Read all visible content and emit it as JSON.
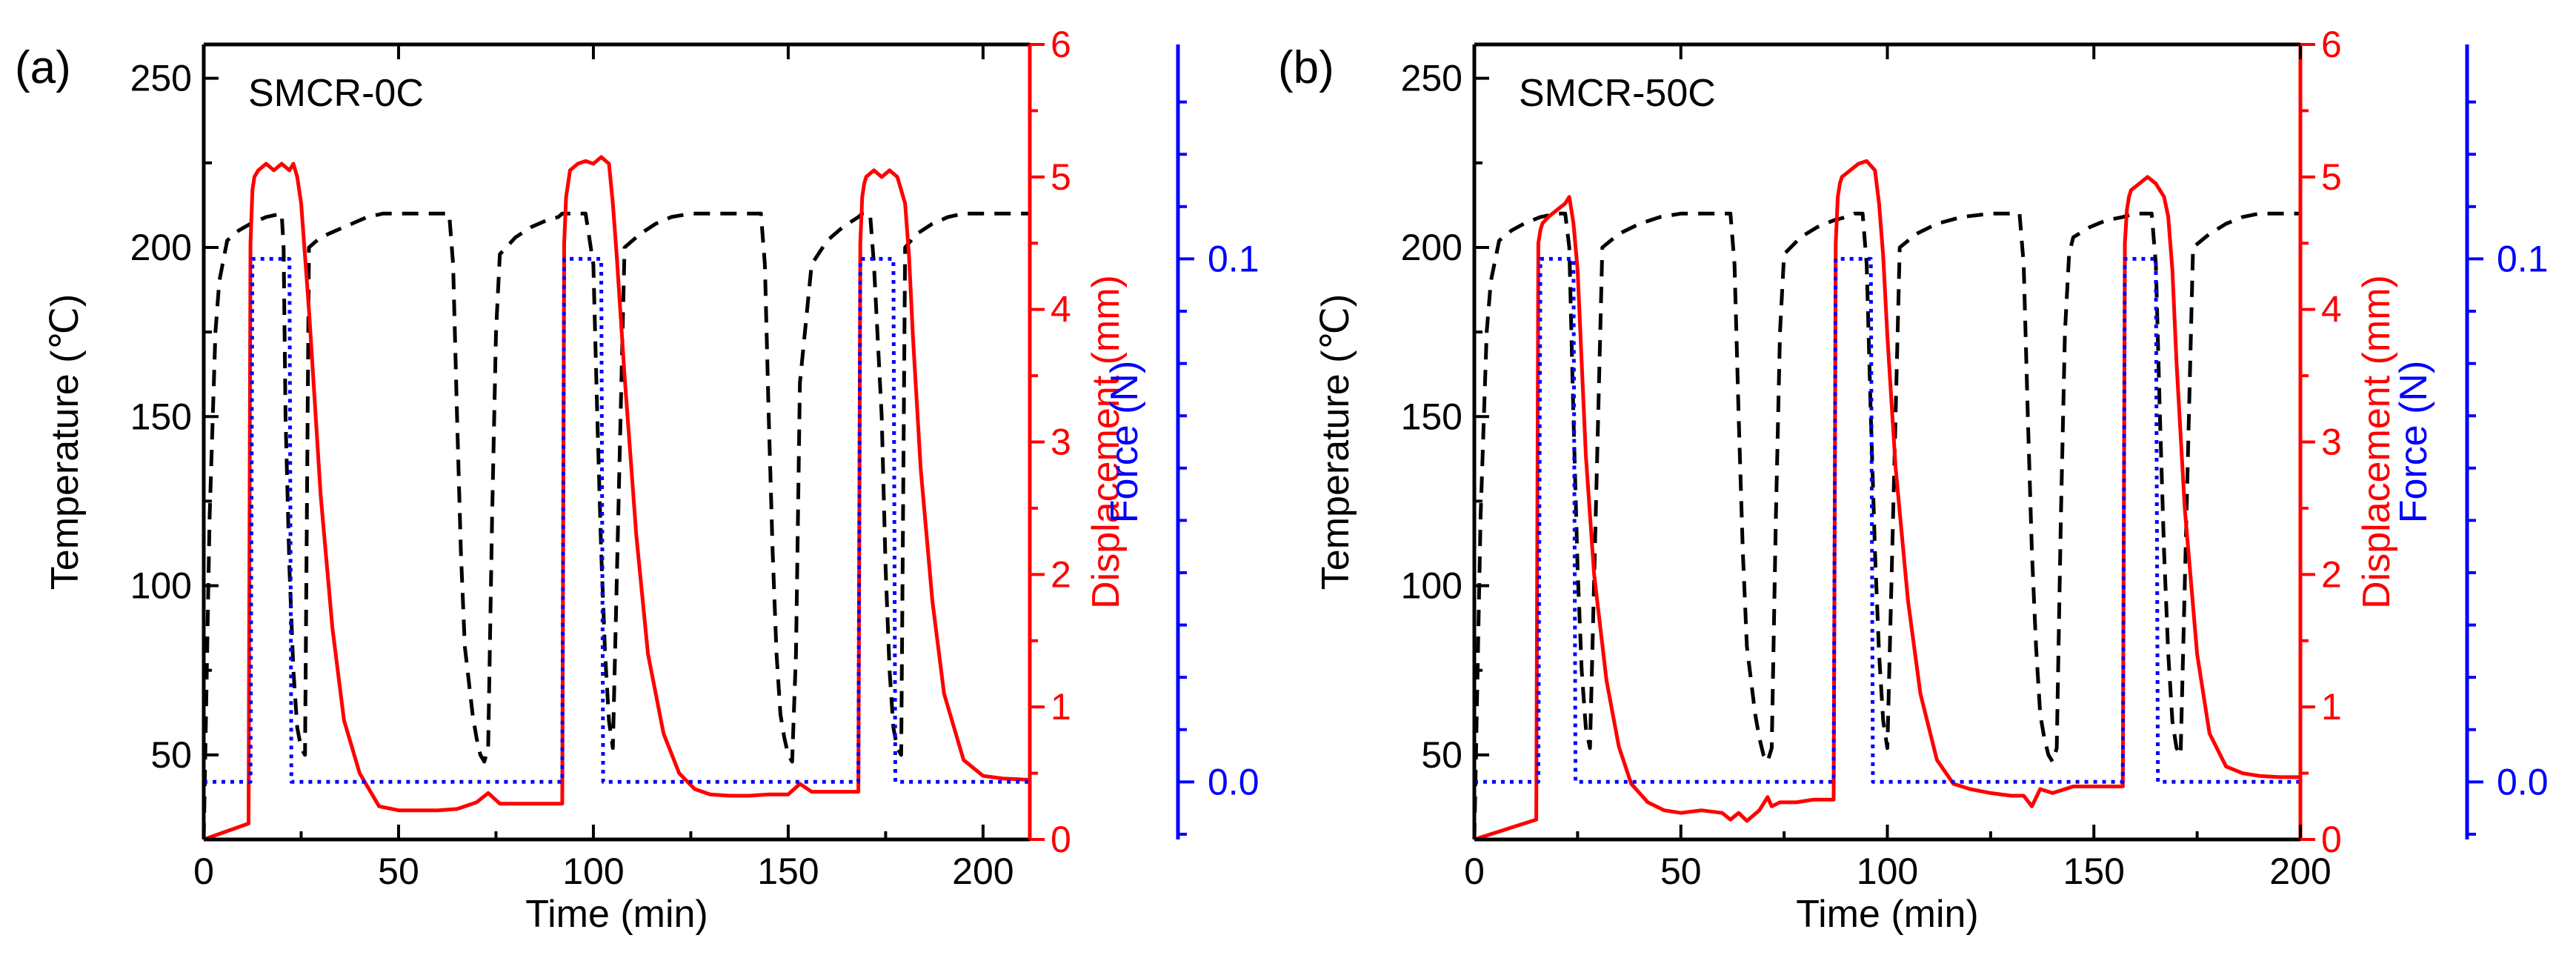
{
  "figure_label": "Figure with two panels (a) and (b)",
  "chart_data": [
    {
      "type": "line",
      "panel_label": "(a)",
      "title": "SMCR-0C",
      "xlabel": "Time (min)",
      "ylabel_left": "Temperature (℃)",
      "ylabel_right": "Displacement (mm)",
      "ylabel_force": "Force (N)",
      "xlim": [
        0,
        212
      ],
      "ylim_left": [
        25,
        260
      ],
      "ylim_right": [
        0,
        6
      ],
      "ylim_force": [
        -0.011,
        0.141
      ],
      "x_ticks": [
        0,
        50,
        100,
        150,
        200
      ],
      "x_tick_labels": [
        "0",
        "50",
        "100",
        "150",
        "200"
      ],
      "y_left_ticks": [
        50,
        100,
        150,
        200,
        250
      ],
      "y_left_tick_labels": [
        "50",
        "100",
        "150",
        "200",
        "250"
      ],
      "y_right_ticks": [
        0,
        1,
        2,
        3,
        4,
        5,
        6
      ],
      "y_right_tick_labels": [
        "0",
        "1",
        "2",
        "3",
        "4",
        "5",
        "6"
      ],
      "y_force_ticks": [
        0.0,
        0.1
      ],
      "y_force_tick_labels": [
        "0.0",
        "0.1"
      ],
      "grid": false,
      "series": [
        {
          "name": "Temperature",
          "axis": "left",
          "color": "#000000",
          "style": "dashed",
          "x": [
            0,
            1.5,
            3,
            4,
            6,
            9,
            12,
            16,
            20,
            20.5,
            21,
            22,
            23,
            24,
            25,
            26,
            27,
            30,
            34,
            38,
            42,
            46,
            50,
            55,
            60,
            63,
            64,
            65,
            66,
            67,
            69,
            70,
            71,
            72,
            73,
            74,
            75,
            76,
            80,
            84,
            88,
            91,
            92,
            93,
            94,
            96,
            98,
            100,
            101,
            102,
            103,
            104,
            105,
            108,
            112,
            116,
            120,
            125,
            130,
            140,
            143,
            144,
            145,
            146,
            147,
            148,
            149,
            150,
            151,
            152,
            153,
            156,
            160,
            164,
            168,
            169,
            170,
            171,
            172,
            174,
            175,
            176,
            177,
            178,
            179,
            180,
            183,
            187,
            191,
            195,
            200,
            205,
            212
          ],
          "y": [
            25,
            120,
            175,
            190,
            202,
            205,
            207,
            209,
            210,
            200,
            150,
            105,
            75,
            58,
            52,
            50,
            200,
            203,
            205,
            207,
            209,
            210,
            210,
            210,
            210,
            210,
            195,
            150,
            110,
            82,
            62,
            55,
            50,
            48,
            52,
            120,
            175,
            198,
            203,
            206,
            208,
            209,
            210,
            210,
            210,
            210,
            210,
            195,
            150,
            110,
            80,
            60,
            52,
            200,
            204,
            207,
            209,
            210,
            210,
            210,
            210,
            195,
            150,
            110,
            80,
            62,
            55,
            50,
            48,
            80,
            160,
            195,
            202,
            206,
            209,
            210,
            210,
            210,
            195,
            150,
            105,
            75,
            58,
            52,
            50,
            200,
            204,
            207,
            209,
            210,
            210,
            210,
            210
          ]
        },
        {
          "name": "Displacement",
          "axis": "right",
          "color": "#ff0000",
          "style": "solid",
          "x": [
            0,
            11.5,
            12,
            12.5,
            13,
            14,
            16,
            18,
            20,
            22,
            23,
            24,
            25,
            27,
            30,
            33,
            36,
            40,
            45,
            50,
            55,
            60,
            65,
            70,
            73,
            76,
            78,
            85,
            92,
            92.5,
            93,
            93.5,
            94,
            96,
            98,
            100,
            102,
            104,
            105,
            106,
            108,
            111,
            114,
            118,
            122,
            126,
            130,
            135,
            140,
            145,
            150,
            153,
            156,
            160,
            168,
            168.5,
            169,
            169.5,
            170,
            172,
            174,
            176,
            178,
            180,
            181,
            182,
            184,
            187,
            190,
            195,
            200,
            205,
            212
          ],
          "y": [
            0,
            0.12,
            4.5,
            4.9,
            5.0,
            5.05,
            5.1,
            5.05,
            5.1,
            5.05,
            5.1,
            5.0,
            4.8,
            4.0,
            2.6,
            1.6,
            0.9,
            0.5,
            0.25,
            0.22,
            0.22,
            0.22,
            0.23,
            0.28,
            0.35,
            0.27,
            0.27,
            0.27,
            0.27,
            4.5,
            4.85,
            4.95,
            5.05,
            5.1,
            5.12,
            5.1,
            5.15,
            5.1,
            4.8,
            4.4,
            3.5,
            2.3,
            1.4,
            0.8,
            0.5,
            0.38,
            0.34,
            0.33,
            0.33,
            0.34,
            0.34,
            0.42,
            0.36,
            0.36,
            0.36,
            4.5,
            4.85,
            4.95,
            5.0,
            5.05,
            5.0,
            5.05,
            5.0,
            4.8,
            4.4,
            3.8,
            2.8,
            1.8,
            1.1,
            0.6,
            0.48,
            0.46,
            0.45
          ]
        },
        {
          "name": "Force",
          "axis": "force",
          "color": "#0000ff",
          "style": "dotted",
          "x": [
            0,
            12,
            12.5,
            22,
            22.5,
            92,
            92.5,
            102,
            102.5,
            168,
            168.5,
            177,
            177.5,
            212
          ],
          "y": [
            0,
            0,
            0.1,
            0.1,
            0,
            0,
            0.1,
            0.1,
            0,
            0,
            0.1,
            0.1,
            0,
            0
          ]
        }
      ]
    },
    {
      "type": "line",
      "panel_label": "(b)",
      "title": "SMCR-50C",
      "xlabel": "Time (min)",
      "ylabel_left": "Temperature (℃)",
      "ylabel_right": "Displacement (mm)",
      "ylabel_force": "Force (N)",
      "xlim": [
        0,
        200
      ],
      "ylim_left": [
        25,
        260
      ],
      "ylim_right": [
        0,
        6
      ],
      "ylim_force": [
        -0.011,
        0.141
      ],
      "x_ticks": [
        0,
        50,
        100,
        150,
        200
      ],
      "x_tick_labels": [
        "0",
        "50",
        "100",
        "150",
        "200"
      ],
      "y_left_ticks": [
        50,
        100,
        150,
        200,
        250
      ],
      "y_left_tick_labels": [
        "50",
        "100",
        "150",
        "200",
        "250"
      ],
      "y_right_ticks": [
        0,
        1,
        2,
        3,
        4,
        5,
        6
      ],
      "y_right_tick_labels": [
        "0",
        "1",
        "2",
        "3",
        "4",
        "5",
        "6"
      ],
      "y_force_ticks": [
        0.0,
        0.1
      ],
      "y_force_tick_labels": [
        "0.0",
        "0.1"
      ],
      "grid": false,
      "series": [
        {
          "name": "Temperature",
          "axis": "left",
          "color": "#000000",
          "style": "dashed",
          "x": [
            0,
            1.5,
            3,
            4,
            6,
            9,
            12,
            16,
            20,
            22,
            23,
            24,
            25,
            26,
            27,
            28,
            31,
            35,
            40,
            45,
            50,
            55,
            60,
            62,
            63,
            64,
            65,
            66,
            68,
            69,
            70,
            71,
            72,
            73,
            74,
            75,
            79,
            83,
            87,
            90,
            92,
            94,
            95,
            96,
            97,
            98,
            99,
            100,
            103,
            107,
            112,
            118,
            125,
            132,
            133,
            134,
            135,
            136,
            137,
            138,
            139,
            140,
            141,
            142,
            143,
            144,
            145,
            149,
            153,
            157,
            160,
            164,
            165,
            166,
            167,
            168,
            169,
            170,
            171,
            174,
            178,
            182,
            186,
            190,
            195,
            200
          ],
          "y": [
            25,
            120,
            175,
            190,
            202,
            205,
            207,
            209,
            210,
            210,
            200,
            150,
            105,
            75,
            58,
            52,
            200,
            204,
            207,
            209,
            210,
            210,
            210,
            210,
            195,
            150,
            110,
            82,
            62,
            55,
            50,
            48,
            52,
            120,
            175,
            198,
            203,
            206,
            208,
            209,
            210,
            210,
            195,
            150,
            110,
            80,
            60,
            52,
            200,
            204,
            207,
            209,
            210,
            210,
            195,
            150,
            110,
            82,
            62,
            55,
            50,
            48,
            52,
            120,
            175,
            198,
            203,
            206,
            208,
            209,
            210,
            210,
            195,
            150,
            110,
            80,
            60,
            52,
            50,
            200,
            204,
            207,
            209,
            210,
            210,
            210
          ]
        },
        {
          "name": "Displacement",
          "axis": "right",
          "color": "#ff0000",
          "style": "solid",
          "x": [
            0,
            15,
            15.5,
            16,
            16.5,
            18,
            20,
            22,
            23,
            24,
            25,
            26,
            27,
            29,
            32,
            35,
            38,
            42,
            46,
            50,
            55,
            60,
            62,
            64,
            66,
            69,
            71,
            72,
            74,
            78,
            82,
            87,
            87.5,
            88,
            88.5,
            89,
            91,
            93,
            95,
            97,
            98,
            99,
            100,
            102,
            105,
            108,
            112,
            116,
            120,
            125,
            130,
            133,
            135,
            137,
            140,
            145,
            150,
            157,
            157.5,
            158,
            158.5,
            159,
            161,
            163,
            165,
            167,
            168,
            169,
            170,
            172,
            175,
            178,
            182,
            186,
            190,
            195,
            200
          ],
          "y": [
            0,
            0.15,
            4.5,
            4.6,
            4.65,
            4.7,
            4.75,
            4.8,
            4.85,
            4.65,
            4.3,
            3.6,
            2.9,
            2.0,
            1.2,
            0.7,
            0.42,
            0.28,
            0.22,
            0.2,
            0.22,
            0.2,
            0.15,
            0.2,
            0.14,
            0.22,
            0.32,
            0.25,
            0.28,
            0.28,
            0.3,
            0.3,
            4.5,
            4.85,
            4.95,
            5.0,
            5.05,
            5.1,
            5.12,
            5.05,
            4.8,
            4.4,
            3.8,
            2.8,
            1.8,
            1.1,
            0.6,
            0.42,
            0.38,
            0.35,
            0.33,
            0.33,
            0.25,
            0.38,
            0.35,
            0.4,
            0.4,
            0.4,
            4.5,
            4.75,
            4.85,
            4.9,
            4.95,
            5.0,
            4.95,
            4.85,
            4.7,
            4.3,
            3.6,
            2.5,
            1.4,
            0.8,
            0.55,
            0.5,
            0.48,
            0.47,
            0.47
          ]
        },
        {
          "name": "Force",
          "axis": "force",
          "color": "#0000ff",
          "style": "dotted",
          "x": [
            0,
            15.5,
            16,
            24,
            24.5,
            87,
            87.5,
            96,
            96.5,
            157,
            157.5,
            165,
            165.5,
            200
          ],
          "y": [
            0,
            0,
            0.1,
            0.1,
            0,
            0,
            0.1,
            0.1,
            0,
            0,
            0.1,
            0.1,
            0,
            0
          ]
        }
      ]
    }
  ]
}
